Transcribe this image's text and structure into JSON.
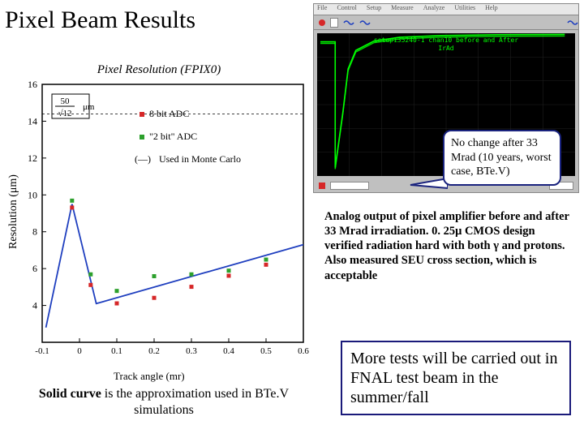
{
  "title": "Pixel Beam Results",
  "chart": {
    "title": "Pixel Resolution (FPIX0)",
    "annotation": {
      "numerator": "50",
      "denominator": "√12",
      "unit": "μm"
    },
    "ylabel": "Resolution (μm)",
    "xlabel_axis_ticks": [
      "-0.1",
      "0",
      "0.1",
      "0.2",
      "0.3",
      "0.4",
      "0.5",
      "0.6"
    ],
    "ylim": [
      2,
      16
    ],
    "yticks": [
      4,
      6,
      8,
      10,
      12,
      14,
      16
    ],
    "xlim": [
      -0.1,
      0.6
    ],
    "legend": [
      {
        "label": "8 bit ADC",
        "marker": "square-red"
      },
      {
        "label": "\"2 bit\" ADC",
        "marker": "square-green"
      },
      {
        "label": "Used in Monte Carlo",
        "marker": "line-blue"
      }
    ],
    "series_red": [
      {
        "x": -0.02,
        "y": 9.4
      },
      {
        "x": 0.03,
        "y": 5.2
      },
      {
        "x": 0.1,
        "y": 4.2
      },
      {
        "x": 0.2,
        "y": 4.5
      },
      {
        "x": 0.3,
        "y": 5.1
      },
      {
        "x": 0.4,
        "y": 5.7
      },
      {
        "x": 0.5,
        "y": 6.3
      }
    ],
    "series_green": [
      {
        "x": -0.02,
        "y": 9.6
      },
      {
        "x": 0.03,
        "y": 5.6
      },
      {
        "x": 0.1,
        "y": 4.7
      },
      {
        "x": 0.2,
        "y": 5.5
      },
      {
        "x": 0.3,
        "y": 5.6
      },
      {
        "x": 0.4,
        "y": 5.8
      },
      {
        "x": 0.5,
        "y": 6.4
      }
    ],
    "line_blue": [
      {
        "x": -0.09,
        "y": 2.8
      },
      {
        "x": -0.02,
        "y": 9.5
      },
      {
        "x": 0.045,
        "y": 4.1
      },
      {
        "x": 0.6,
        "y": 7.3
      }
    ],
    "colors": {
      "red": "#d62728",
      "green": "#2ca02c",
      "blue": "#1f3fbf",
      "axis": "#000000",
      "bg": "#ffffff"
    },
    "title_fontsize": 15,
    "label_fontsize": 12,
    "marker_size": 5
  },
  "scope": {
    "menu": [
      "File",
      "Control",
      "Setup",
      "Measure",
      "Analyze",
      "Utilities",
      "Help"
    ],
    "toolbar_items": [
      "M1",
      "M2",
      "M3"
    ],
    "indicator": "red",
    "caption_line1": "setup135240-1 chan10 before and After",
    "caption_line2": "IrAd",
    "curve": [
      {
        "x": 0.07,
        "y": 0.94
      },
      {
        "x": 0.1,
        "y": 0.55
      },
      {
        "x": 0.12,
        "y": 0.25
      },
      {
        "x": 0.15,
        "y": 0.12
      },
      {
        "x": 0.22,
        "y": 0.055
      },
      {
        "x": 0.32,
        "y": 0.028
      },
      {
        "x": 0.48,
        "y": 0.016
      },
      {
        "x": 0.7,
        "y": 0.01
      },
      {
        "x": 0.96,
        "y": 0.008
      }
    ],
    "curve_color": "#00ff00",
    "bg": "#000000"
  },
  "callout_text": "No change after 33 Mrad (10 years, worst case, BTe.V)",
  "analog_text": "Analog output of pixel amplifier before and after 33 Mrad irradiation. 0. 25μ CMOS design verified radiation hard with both γ and protons. Also measured SEU cross section, which is acceptable",
  "xlabel_text": "Track angle (mr)",
  "solid_curve_bold": "Solid curve",
  "solid_curve_rest": " is the approximation used in BTe.V simulations",
  "more_tests": "More tests will be carried out in FNAL test beam in the summer/fall",
  "callout_border": "#1a237e",
  "moretests_border": "#1a1a7a"
}
